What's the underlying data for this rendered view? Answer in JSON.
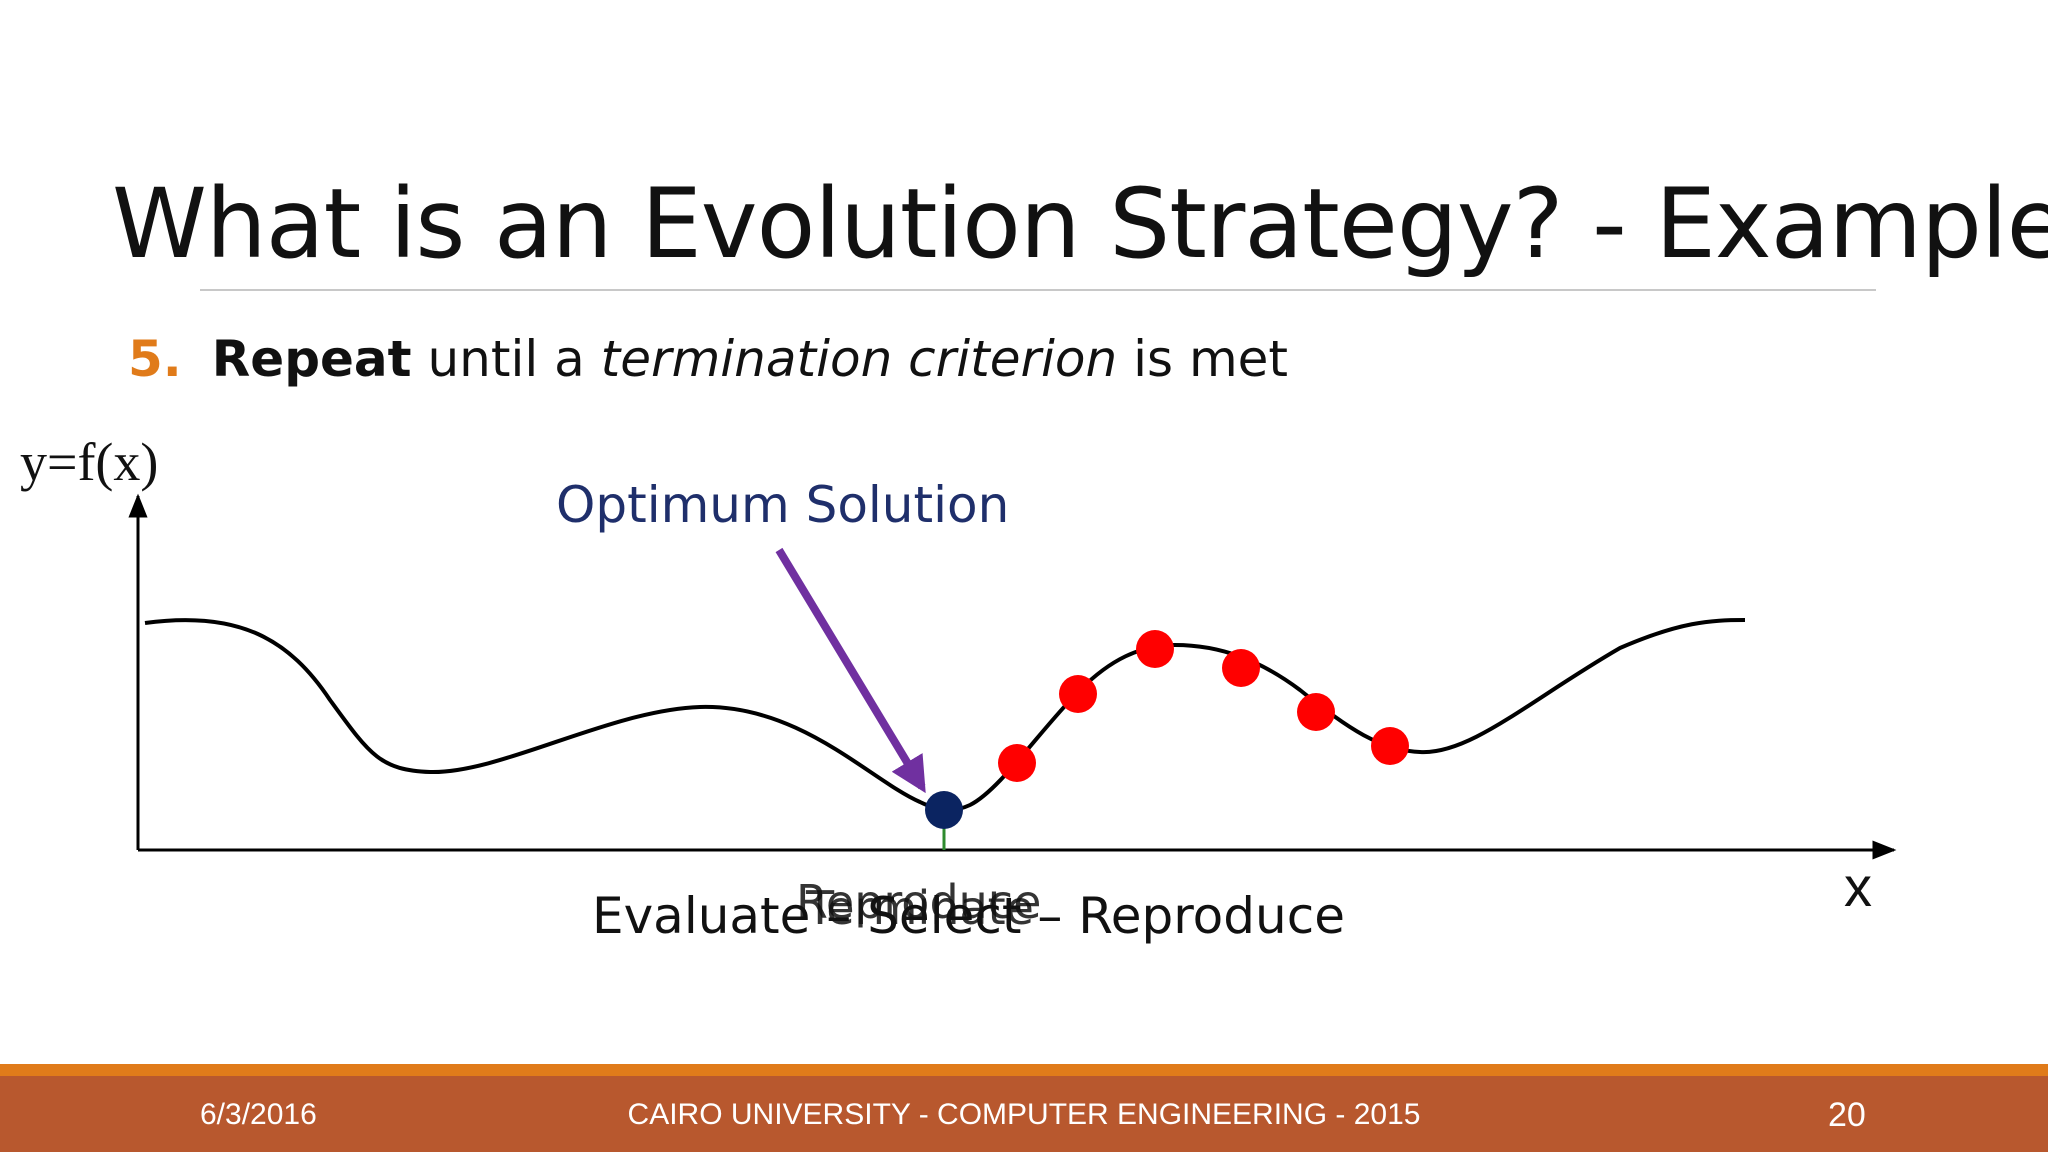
{
  "slide": {
    "title": "What is an Evolution Strategy? - Example",
    "step_number": "5.",
    "step_bold": "Repeat",
    "step_mid": " until a ",
    "step_italic": "termination criterion",
    "step_end": " is met"
  },
  "diagram": {
    "y_axis_label": "y=f(x)",
    "x_axis_label": "x",
    "annotation": "Optimum Solution",
    "caption_main": "Evaluate – Select – Reproduce",
    "caption_overlay_1": "Reproduce",
    "caption_overlay_2": "Terminate",
    "colors": {
      "curve": "#000000",
      "population": "#ff0000",
      "optimum": "#0b2461",
      "arrow": "#7030a0",
      "annotation_text": "#1f2f6b",
      "marker_line": "#2e8b2e"
    },
    "population_count": 6
  },
  "footer": {
    "date": "6/3/2016",
    "center": "CAIRO UNIVERSITY - COMPUTER ENGINEERING - 2015",
    "page": "20",
    "colors": {
      "bar": "#b8582e",
      "stripe": "#e07b1a"
    }
  }
}
